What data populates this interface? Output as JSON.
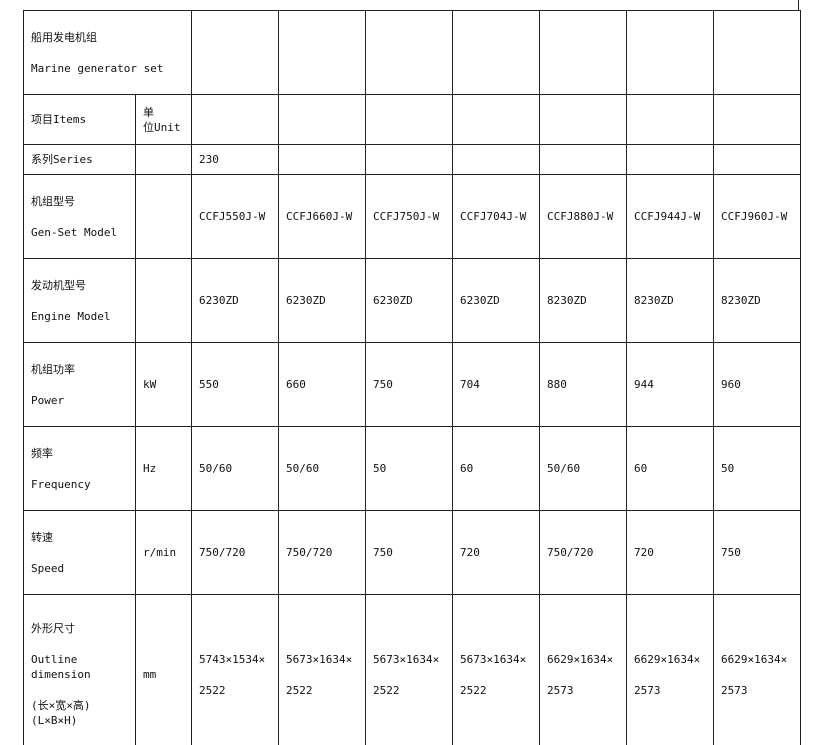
{
  "title_cn": "船用发电机组",
  "title_en": "Marine generator set",
  "header": {
    "items": "项目Items",
    "unit_cn": "单",
    "unit_rest": "位Unit"
  },
  "series": {
    "label": "系列Series",
    "unit": "",
    "value": "230"
  },
  "rows": [
    {
      "key": "model",
      "cn": "机组型号",
      "en": "Gen-Set Model",
      "unit": "",
      "values": [
        "CCFJ550J-W",
        "CCFJ660J-W",
        "CCFJ750J-W",
        "CCFJ704J-W",
        "CCFJ880J-W",
        "CCFJ944J-W",
        "CCFJ960J-W"
      ]
    },
    {
      "key": "engine",
      "cn": "发动机型号",
      "en": "Engine Model",
      "unit": "",
      "values": [
        "6230ZD",
        "6230ZD",
        "6230ZD",
        "6230ZD",
        "8230ZD",
        "8230ZD",
        "8230ZD"
      ]
    },
    {
      "key": "power",
      "cn": "机组功率",
      "en": "Power",
      "unit": "kW",
      "values": [
        "550",
        "660",
        "750",
        "704",
        "880",
        "944",
        "960"
      ]
    },
    {
      "key": "frequency",
      "cn": "频率",
      "en": "Frequency",
      "unit": "Hz",
      "values": [
        "50/60",
        "50/60",
        "50",
        "60",
        "50/60",
        "60",
        "50"
      ]
    },
    {
      "key": "speed",
      "cn": "转速",
      "en": "Speed",
      "unit": "r/min",
      "values": [
        "750/720",
        "750/720",
        "750",
        "720",
        "750/720",
        "720",
        "750"
      ]
    }
  ],
  "outline": {
    "cn": "外形尺寸",
    "en1": "Outline",
    "en2": "dimension",
    "cn2": "(长×宽×高)",
    "en3": "(L×B×H)",
    "unit": "mm",
    "line1": [
      "5743×1534×",
      "5673×1634×",
      "5673×1634×",
      "5673×1634×",
      "6629×1634×",
      "6629×1634×",
      "6629×1634×"
    ],
    "line2": [
      "2522",
      "2522",
      "2522",
      "2522",
      "2573",
      "2573",
      "2573"
    ]
  }
}
